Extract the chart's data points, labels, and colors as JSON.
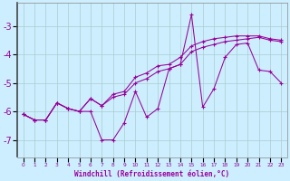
{
  "x": [
    0,
    1,
    2,
    3,
    4,
    5,
    6,
    7,
    8,
    9,
    10,
    11,
    12,
    13,
    14,
    15,
    16,
    17,
    18,
    19,
    20,
    21,
    22,
    23
  ],
  "line_jagged": [
    -6.1,
    -6.3,
    -6.3,
    -5.7,
    -5.9,
    -6.0,
    -6.0,
    -7.0,
    -7.0,
    -6.4,
    -5.3,
    -6.2,
    -5.9,
    -4.5,
    -4.35,
    -2.6,
    -5.85,
    -5.2,
    -4.1,
    -3.65,
    -3.6,
    -4.55,
    -4.6,
    -5.0
  ],
  "line_smooth": [
    -6.1,
    -6.3,
    -6.3,
    -5.7,
    -5.9,
    -6.0,
    -5.55,
    -5.8,
    -5.5,
    -5.4,
    -5.0,
    -4.85,
    -4.6,
    -4.5,
    -4.35,
    -3.9,
    -3.75,
    -3.65,
    -3.55,
    -3.5,
    -3.45,
    -3.4,
    -3.5,
    -3.55
  ],
  "line_upper": [
    -6.1,
    -6.3,
    -6.3,
    -5.7,
    -5.9,
    -6.0,
    -5.55,
    -5.8,
    -5.4,
    -5.3,
    -4.8,
    -4.65,
    -4.4,
    -4.35,
    -4.1,
    -3.7,
    -3.55,
    -3.45,
    -3.4,
    -3.35,
    -3.35,
    -3.35,
    -3.45,
    -3.5
  ],
  "line_color": "#990099",
  "bg_color": "#cceeff",
  "grid_color": "#aacccc",
  "xlabel": "Windchill (Refroidissement éolien,°C)",
  "xlabel_color": "#990099",
  "tick_color": "#990099",
  "yticks": [
    -7,
    -6,
    -5,
    -4,
    -3
  ],
  "ylim": [
    -7.6,
    -2.2
  ],
  "xlim": [
    -0.5,
    23.5
  ],
  "marker": "+"
}
